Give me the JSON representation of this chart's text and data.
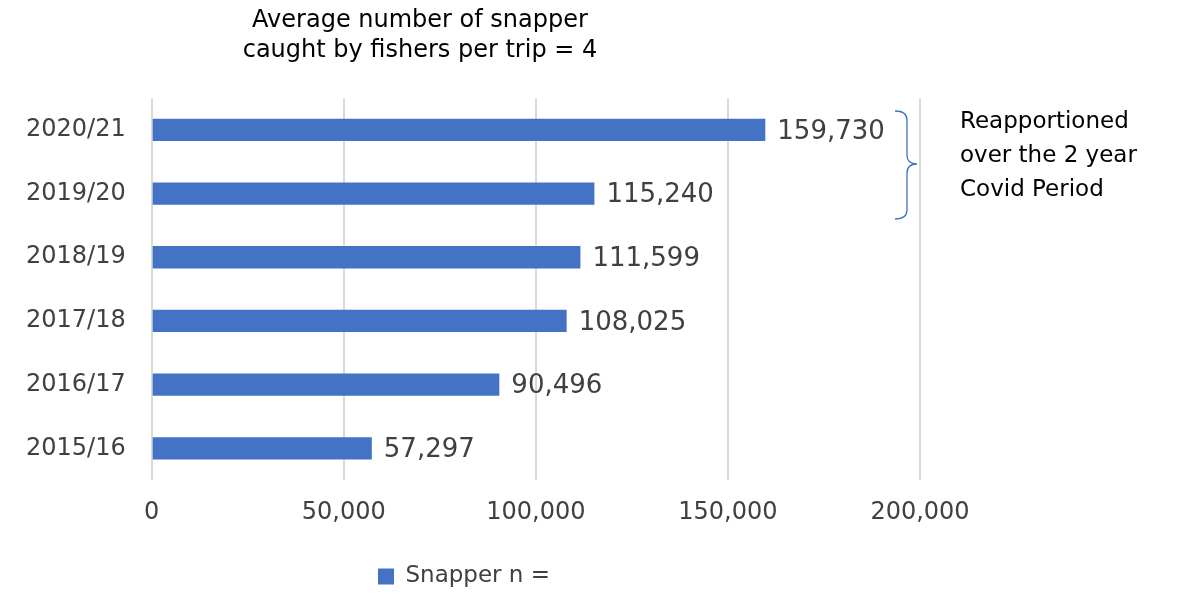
{
  "chart_data": {
    "type": "bar",
    "orientation": "horizontal",
    "title": "Average number of snapper caught by fishers per trip  = 4",
    "categories": [
      "2020/21",
      "2019/20",
      "2018/19",
      "2017/18",
      "2016/17",
      "2015/16"
    ],
    "series": [
      {
        "name": "Snapper n =",
        "color": "#4472c4",
        "values": [
          159730,
          115240,
          111599,
          108025,
          90496,
          57297
        ],
        "value_labels": [
          "159,730",
          "115,240",
          "111,599",
          "108,025",
          "90,496",
          "57,297"
        ]
      }
    ],
    "xlim": [
      0,
      200000
    ],
    "xticks": [
      {
        "value": 0,
        "label": "0"
      },
      {
        "value": 50000,
        "label": "50,000"
      },
      {
        "value": 100000,
        "label": "100,000"
      },
      {
        "value": 150000,
        "label": "150,000"
      },
      {
        "value": 200000,
        "label": "200,000"
      }
    ],
    "grid": "x",
    "legend": "bottom",
    "annotations": [
      "Reapportioned over the 2 year Covid Period"
    ]
  }
}
